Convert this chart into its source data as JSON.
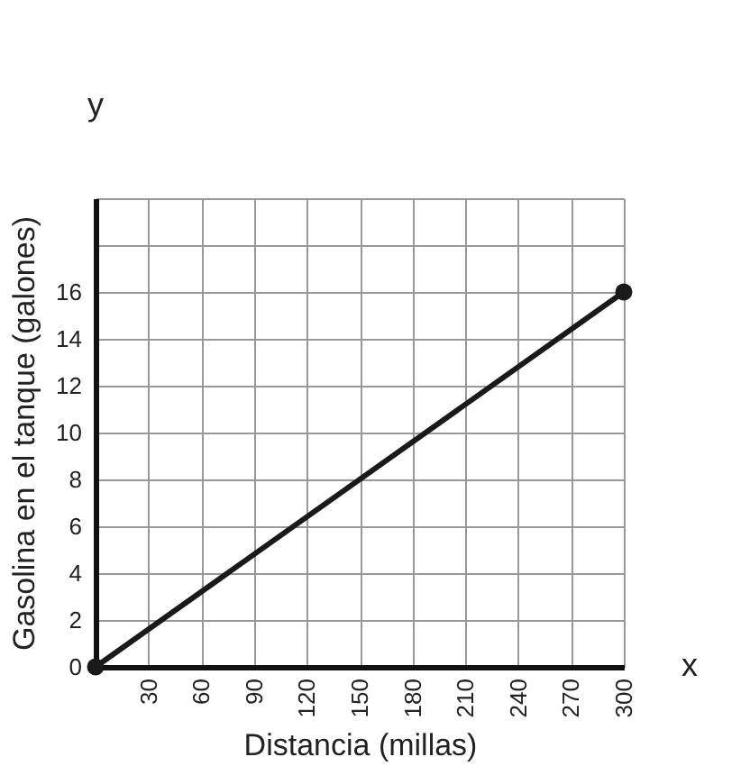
{
  "chart_data": {
    "type": "line",
    "xlabel": "Distancia (millas)",
    "ylabel": "Gasolina en el tanque (galones)",
    "x": [
      0,
      300
    ],
    "series": [
      {
        "color": "#1a1a1a",
        "values": [
          0,
          16
        ]
      }
    ],
    "xlim": [
      0,
      300
    ],
    "xticks": [
      {
        "value": 0,
        "label": null
      },
      30,
      60,
      90,
      120,
      150,
      180,
      210,
      240,
      270,
      300
    ],
    "ylim": [
      0,
      20
    ],
    "yticks": [
      0,
      2,
      4,
      6,
      8,
      10,
      12,
      14,
      16,
      {
        "value": 18,
        "label": null
      },
      {
        "value": 20,
        "label": null
      }
    ],
    "grid": true,
    "marker": "circle",
    "line_style": "solid",
    "annotations": [
      "x",
      "y"
    ]
  }
}
